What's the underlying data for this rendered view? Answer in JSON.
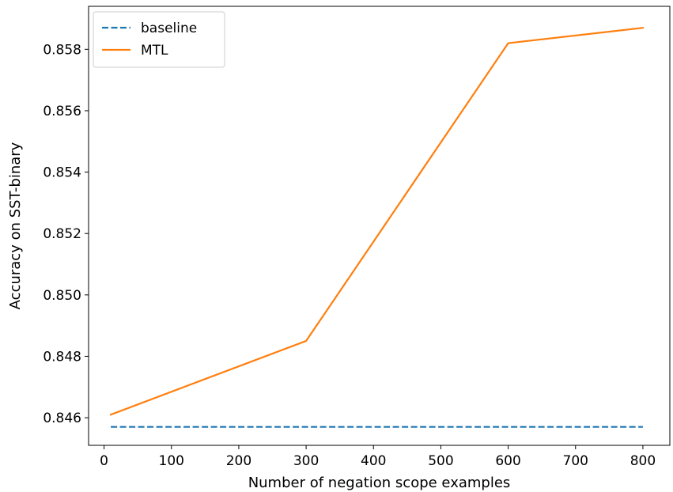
{
  "chart_data": {
    "type": "line",
    "xlabel": "Number of negation scope examples",
    "ylabel": "Accuracy on SST-binary",
    "xlim": [
      -23,
      840
    ],
    "ylim": [
      0.8451,
      0.8594
    ],
    "x_ticks": [
      0,
      100,
      200,
      300,
      400,
      500,
      600,
      700,
      800
    ],
    "y_ticks": [
      0.846,
      0.848,
      0.85,
      0.852,
      0.854,
      0.856,
      0.858
    ],
    "y_tick_labels": [
      "0.846",
      "0.848",
      "0.850",
      "0.852",
      "0.854",
      "0.856",
      "0.858"
    ],
    "grid": false,
    "legend_position": "top-left",
    "series": [
      {
        "name": "baseline",
        "color": "#1f77b4",
        "style": "dashed",
        "x": [
          10,
          800
        ],
        "y": [
          0.8457,
          0.8457
        ]
      },
      {
        "name": "MTL",
        "color": "#ff7f0e",
        "style": "solid",
        "x": [
          10,
          300,
          600,
          800
        ],
        "y": [
          0.8461,
          0.8485,
          0.8582,
          0.8587
        ]
      }
    ]
  }
}
